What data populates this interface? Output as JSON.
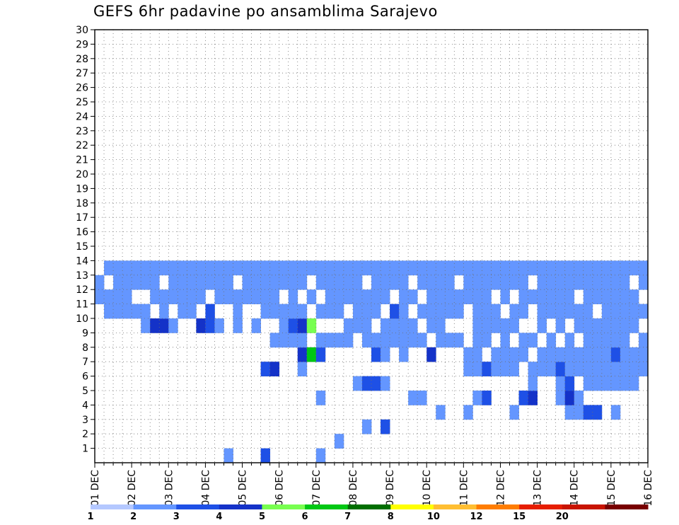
{
  "chart_data": {
    "type": "heatmap",
    "title": "GEFS 6hr padavine po ansamblima Sarajevo",
    "xlabel": "",
    "ylabel": "",
    "x_tick_labels": [
      "01 DEC",
      "02 DEC",
      "03 DEC",
      "04 DEC",
      "05 DEC",
      "06 DEC",
      "07 DEC",
      "08 DEC",
      "09 DEC",
      "10 DEC",
      "11 DEC",
      "12 DEC",
      "13 DEC",
      "14 DEC",
      "15 DEC",
      "16 DEC"
    ],
    "y_tick_labels": [
      "1",
      "2",
      "3",
      "4",
      "5",
      "6",
      "7",
      "8",
      "9",
      "10",
      "11",
      "12",
      "13",
      "14",
      "15",
      "16",
      "17",
      "18",
      "19",
      "20",
      "21",
      "22",
      "23",
      "24",
      "25",
      "26",
      "27",
      "28",
      "29",
      "30"
    ],
    "x_unit": "6-hour step since 01 DEC 00Z",
    "x_range": [
      0,
      60
    ],
    "y_range": [
      0,
      30
    ],
    "grid": true,
    "legend": "bottom colorbar",
    "levels": [
      1,
      2,
      3,
      4,
      5,
      6,
      7,
      8,
      10,
      12,
      15,
      20
    ],
    "level_labels": [
      "1",
      "2",
      "3",
      "4",
      "5",
      "6",
      "7",
      "8",
      "10",
      "12",
      "15",
      "20"
    ],
    "palette": [
      "#b4c8ff",
      "#6496ff",
      "#1e50e6",
      "#1432c8",
      "#78ff50",
      "#00c814",
      "#006e00",
      "#ffff00",
      "#ffbe32",
      "#ff7d00",
      "#e61e00",
      "#c81400",
      "#780000"
    ],
    "cells": [
      [
        24,
        0,
        1
      ],
      [
        14,
        0,
        1
      ],
      [
        18,
        0,
        2
      ],
      [
        26,
        1,
        1
      ],
      [
        29,
        2,
        1
      ],
      [
        31,
        2,
        2
      ],
      [
        37,
        3,
        1
      ],
      [
        40,
        3,
        1
      ],
      [
        45,
        3,
        1
      ],
      [
        51,
        3,
        1
      ],
      [
        52,
        3,
        1
      ],
      [
        53,
        3,
        2
      ],
      [
        54,
        3,
        2
      ],
      [
        56,
        3,
        1
      ],
      [
        24,
        4,
        1
      ],
      [
        34,
        4,
        1
      ],
      [
        35,
        4,
        1
      ],
      [
        41,
        4,
        1
      ],
      [
        42,
        4,
        2
      ],
      [
        46,
        4,
        2
      ],
      [
        47,
        4,
        3
      ],
      [
        50,
        4,
        1
      ],
      [
        51,
        4,
        3
      ],
      [
        52,
        4,
        1
      ],
      [
        28,
        5,
        1
      ],
      [
        29,
        5,
        2
      ],
      [
        30,
        5,
        2
      ],
      [
        31,
        5,
        1
      ],
      [
        47,
        5,
        1
      ],
      [
        50,
        5,
        1
      ],
      [
        51,
        5,
        2
      ],
      [
        53,
        5,
        1
      ],
      [
        54,
        5,
        1
      ],
      [
        55,
        5,
        1
      ],
      [
        56,
        5,
        1
      ],
      [
        57,
        5,
        1
      ],
      [
        58,
        5,
        1
      ],
      [
        18,
        6,
        2
      ],
      [
        19,
        6,
        3
      ],
      [
        22,
        6,
        1
      ],
      [
        40,
        6,
        1
      ],
      [
        41,
        6,
        1
      ],
      [
        42,
        6,
        2
      ],
      [
        43,
        6,
        1
      ],
      [
        44,
        6,
        1
      ],
      [
        45,
        6,
        1
      ],
      [
        47,
        6,
        1
      ],
      [
        48,
        6,
        1
      ],
      [
        49,
        6,
        1
      ],
      [
        50,
        6,
        2
      ],
      [
        51,
        6,
        1
      ],
      [
        52,
        6,
        1
      ],
      [
        53,
        6,
        1
      ],
      [
        54,
        6,
        1
      ],
      [
        55,
        6,
        1
      ],
      [
        56,
        6,
        1
      ],
      [
        57,
        6,
        1
      ],
      [
        58,
        6,
        1
      ],
      [
        59,
        6,
        1
      ],
      [
        22,
        7,
        3
      ],
      [
        23,
        7,
        5
      ],
      [
        24,
        7,
        2
      ],
      [
        30,
        7,
        2
      ],
      [
        31,
        7,
        1
      ],
      [
        33,
        7,
        1
      ],
      [
        36,
        7,
        3
      ],
      [
        40,
        7,
        1
      ],
      [
        41,
        7,
        1
      ],
      [
        43,
        7,
        1
      ],
      [
        44,
        7,
        1
      ],
      [
        45,
        7,
        1
      ],
      [
        46,
        7,
        1
      ],
      [
        48,
        7,
        1
      ],
      [
        49,
        7,
        1
      ],
      [
        50,
        7,
        1
      ],
      [
        51,
        7,
        1
      ],
      [
        52,
        7,
        1
      ],
      [
        53,
        7,
        1
      ],
      [
        54,
        7,
        1
      ],
      [
        55,
        7,
        1
      ],
      [
        56,
        7,
        2
      ],
      [
        57,
        7,
        1
      ],
      [
        58,
        7,
        1
      ],
      [
        59,
        7,
        1
      ],
      [
        19,
        8,
        1
      ],
      [
        20,
        8,
        1
      ],
      [
        21,
        8,
        1
      ],
      [
        22,
        8,
        1
      ],
      [
        24,
        8,
        1
      ],
      [
        25,
        8,
        1
      ],
      [
        26,
        8,
        1
      ],
      [
        27,
        8,
        1
      ],
      [
        29,
        8,
        1
      ],
      [
        30,
        8,
        1
      ],
      [
        31,
        8,
        1
      ],
      [
        32,
        8,
        1
      ],
      [
        33,
        8,
        1
      ],
      [
        34,
        8,
        1
      ],
      [
        35,
        8,
        1
      ],
      [
        37,
        8,
        1
      ],
      [
        38,
        8,
        1
      ],
      [
        39,
        8,
        1
      ],
      [
        41,
        8,
        1
      ],
      [
        42,
        8,
        1
      ],
      [
        44,
        8,
        1
      ],
      [
        46,
        8,
        1
      ],
      [
        47,
        8,
        1
      ],
      [
        49,
        8,
        1
      ],
      [
        51,
        8,
        1
      ],
      [
        53,
        8,
        1
      ],
      [
        54,
        8,
        1
      ],
      [
        55,
        8,
        1
      ],
      [
        56,
        8,
        1
      ],
      [
        57,
        8,
        1
      ],
      [
        59,
        8,
        1
      ],
      [
        5,
        9,
        1
      ],
      [
        6,
        9,
        3
      ],
      [
        7,
        9,
        3
      ],
      [
        8,
        9,
        1
      ],
      [
        11,
        9,
        3
      ],
      [
        12,
        9,
        2
      ],
      [
        13,
        9,
        1
      ],
      [
        15,
        9,
        1
      ],
      [
        17,
        9,
        1
      ],
      [
        20,
        9,
        1
      ],
      [
        21,
        9,
        2
      ],
      [
        22,
        9,
        3
      ],
      [
        23,
        9,
        4
      ],
      [
        27,
        9,
        1
      ],
      [
        28,
        9,
        1
      ],
      [
        29,
        9,
        1
      ],
      [
        31,
        9,
        1
      ],
      [
        32,
        9,
        1
      ],
      [
        33,
        9,
        1
      ],
      [
        34,
        9,
        1
      ],
      [
        36,
        9,
        1
      ],
      [
        37,
        9,
        1
      ],
      [
        41,
        9,
        1
      ],
      [
        42,
        9,
        1
      ],
      [
        43,
        9,
        1
      ],
      [
        44,
        9,
        1
      ],
      [
        45,
        9,
        1
      ],
      [
        48,
        9,
        1
      ],
      [
        50,
        9,
        1
      ],
      [
        52,
        9,
        1
      ],
      [
        53,
        9,
        1
      ],
      [
        54,
        9,
        1
      ],
      [
        55,
        9,
        1
      ],
      [
        56,
        9,
        1
      ],
      [
        57,
        9,
        1
      ],
      [
        58,
        9,
        1
      ],
      [
        1,
        10,
        1
      ],
      [
        2,
        10,
        1
      ],
      [
        3,
        10,
        1
      ],
      [
        4,
        10,
        1
      ],
      [
        5,
        10,
        1
      ],
      [
        7,
        10,
        1
      ],
      [
        9,
        10,
        1
      ],
      [
        10,
        10,
        1
      ],
      [
        12,
        10,
        2
      ],
      [
        15,
        10,
        1
      ],
      [
        18,
        10,
        1
      ],
      [
        19,
        10,
        1
      ],
      [
        20,
        10,
        1
      ],
      [
        21,
        10,
        1
      ],
      [
        22,
        10,
        1
      ],
      [
        24,
        10,
        1
      ],
      [
        25,
        10,
        1
      ],
      [
        26,
        10,
        1
      ],
      [
        28,
        10,
        1
      ],
      [
        29,
        10,
        1
      ],
      [
        30,
        10,
        1
      ],
      [
        32,
        10,
        2
      ],
      [
        33,
        10,
        1
      ],
      [
        35,
        10,
        1
      ],
      [
        36,
        10,
        1
      ],
      [
        37,
        10,
        1
      ],
      [
        38,
        10,
        1
      ],
      [
        39,
        10,
        1
      ],
      [
        41,
        10,
        1
      ],
      [
        42,
        10,
        1
      ],
      [
        43,
        10,
        1
      ],
      [
        45,
        10,
        1
      ],
      [
        46,
        10,
        1
      ],
      [
        48,
        10,
        1
      ],
      [
        49,
        10,
        1
      ],
      [
        50,
        10,
        1
      ],
      [
        51,
        10,
        1
      ],
      [
        52,
        10,
        1
      ],
      [
        53,
        10,
        1
      ],
      [
        55,
        10,
        1
      ],
      [
        56,
        10,
        1
      ],
      [
        57,
        10,
        1
      ],
      [
        58,
        10,
        1
      ],
      [
        59,
        10,
        1
      ],
      [
        0,
        11,
        1
      ],
      [
        1,
        11,
        1
      ],
      [
        2,
        11,
        1
      ],
      [
        3,
        11,
        1
      ],
      [
        6,
        11,
        1
      ],
      [
        7,
        11,
        1
      ],
      [
        8,
        11,
        1
      ],
      [
        9,
        11,
        1
      ],
      [
        10,
        11,
        1
      ],
      [
        11,
        11,
        1
      ],
      [
        13,
        11,
        1
      ],
      [
        14,
        11,
        1
      ],
      [
        15,
        11,
        1
      ],
      [
        16,
        11,
        1
      ],
      [
        17,
        11,
        1
      ],
      [
        18,
        11,
        1
      ],
      [
        19,
        11,
        1
      ],
      [
        21,
        11,
        1
      ],
      [
        23,
        11,
        1
      ],
      [
        25,
        11,
        1
      ],
      [
        26,
        11,
        1
      ],
      [
        27,
        11,
        1
      ],
      [
        28,
        11,
        1
      ],
      [
        29,
        11,
        1
      ],
      [
        30,
        11,
        1
      ],
      [
        31,
        11,
        1
      ],
      [
        33,
        11,
        1
      ],
      [
        34,
        11,
        1
      ],
      [
        36,
        11,
        1
      ],
      [
        37,
        11,
        1
      ],
      [
        38,
        11,
        1
      ],
      [
        39,
        11,
        1
      ],
      [
        40,
        11,
        1
      ],
      [
        41,
        11,
        1
      ],
      [
        42,
        11,
        1
      ],
      [
        44,
        11,
        1
      ],
      [
        46,
        11,
        1
      ],
      [
        47,
        11,
        1
      ],
      [
        48,
        11,
        1
      ],
      [
        49,
        11,
        1
      ],
      [
        50,
        11,
        1
      ],
      [
        51,
        11,
        1
      ],
      [
        53,
        11,
        1
      ],
      [
        54,
        11,
        1
      ],
      [
        55,
        11,
        1
      ],
      [
        56,
        11,
        1
      ],
      [
        57,
        11,
        1
      ],
      [
        58,
        11,
        1
      ],
      [
        0,
        12,
        1
      ],
      [
        2,
        12,
        1
      ],
      [
        3,
        12,
        1
      ],
      [
        4,
        12,
        1
      ],
      [
        5,
        12,
        1
      ],
      [
        6,
        12,
        1
      ],
      [
        8,
        12,
        1
      ],
      [
        9,
        12,
        1
      ],
      [
        10,
        12,
        1
      ],
      [
        11,
        12,
        1
      ],
      [
        12,
        12,
        1
      ],
      [
        13,
        12,
        1
      ],
      [
        14,
        12,
        1
      ],
      [
        16,
        12,
        1
      ],
      [
        17,
        12,
        1
      ],
      [
        18,
        12,
        1
      ],
      [
        19,
        12,
        1
      ],
      [
        20,
        12,
        1
      ],
      [
        21,
        12,
        1
      ],
      [
        22,
        12,
        1
      ],
      [
        24,
        12,
        1
      ],
      [
        25,
        12,
        1
      ],
      [
        26,
        12,
        1
      ],
      [
        27,
        12,
        1
      ],
      [
        28,
        12,
        1
      ],
      [
        30,
        12,
        1
      ],
      [
        31,
        12,
        1
      ],
      [
        32,
        12,
        1
      ],
      [
        33,
        12,
        1
      ],
      [
        35,
        12,
        1
      ],
      [
        36,
        12,
        1
      ],
      [
        37,
        12,
        1
      ],
      [
        38,
        12,
        1
      ],
      [
        40,
        12,
        1
      ],
      [
        41,
        12,
        1
      ],
      [
        42,
        12,
        1
      ],
      [
        43,
        12,
        1
      ],
      [
        44,
        12,
        1
      ],
      [
        45,
        12,
        1
      ],
      [
        46,
        12,
        1
      ],
      [
        48,
        12,
        1
      ],
      [
        49,
        12,
        1
      ],
      [
        50,
        12,
        1
      ],
      [
        51,
        12,
        1
      ],
      [
        52,
        12,
        1
      ],
      [
        53,
        12,
        1
      ],
      [
        54,
        12,
        1
      ],
      [
        55,
        12,
        1
      ],
      [
        56,
        12,
        1
      ],
      [
        57,
        12,
        1
      ],
      [
        59,
        12,
        1
      ],
      [
        1,
        13,
        1
      ],
      [
        2,
        13,
        1
      ],
      [
        3,
        13,
        1
      ],
      [
        4,
        13,
        1
      ],
      [
        5,
        13,
        1
      ],
      [
        6,
        13,
        1
      ],
      [
        7,
        13,
        1
      ],
      [
        8,
        13,
        1
      ],
      [
        9,
        13,
        1
      ],
      [
        10,
        13,
        1
      ],
      [
        11,
        13,
        1
      ],
      [
        12,
        13,
        1
      ],
      [
        13,
        13,
        1
      ],
      [
        14,
        13,
        1
      ],
      [
        15,
        13,
        1
      ],
      [
        16,
        13,
        1
      ],
      [
        17,
        13,
        1
      ],
      [
        18,
        13,
        1
      ],
      [
        19,
        13,
        1
      ],
      [
        20,
        13,
        1
      ],
      [
        21,
        13,
        1
      ],
      [
        22,
        13,
        1
      ],
      [
        23,
        13,
        1
      ],
      [
        24,
        13,
        1
      ],
      [
        25,
        13,
        1
      ],
      [
        26,
        13,
        1
      ],
      [
        27,
        13,
        1
      ],
      [
        28,
        13,
        1
      ],
      [
        29,
        13,
        1
      ],
      [
        30,
        13,
        1
      ],
      [
        31,
        13,
        1
      ],
      [
        32,
        13,
        1
      ],
      [
        33,
        13,
        1
      ],
      [
        34,
        13,
        1
      ],
      [
        35,
        13,
        1
      ],
      [
        36,
        13,
        1
      ],
      [
        37,
        13,
        1
      ],
      [
        38,
        13,
        1
      ],
      [
        39,
        13,
        1
      ],
      [
        40,
        13,
        1
      ],
      [
        41,
        13,
        1
      ],
      [
        42,
        13,
        1
      ],
      [
        43,
        13,
        1
      ],
      [
        44,
        13,
        1
      ],
      [
        45,
        13,
        1
      ],
      [
        46,
        13,
        1
      ],
      [
        47,
        13,
        1
      ],
      [
        48,
        13,
        1
      ],
      [
        49,
        13,
        1
      ],
      [
        50,
        13,
        1
      ],
      [
        51,
        13,
        1
      ],
      [
        52,
        13,
        1
      ],
      [
        53,
        13,
        1
      ],
      [
        54,
        13,
        1
      ],
      [
        55,
        13,
        1
      ],
      [
        56,
        13,
        1
      ],
      [
        57,
        13,
        1
      ],
      [
        58,
        13,
        1
      ],
      [
        59,
        13,
        1
      ]
    ]
  }
}
